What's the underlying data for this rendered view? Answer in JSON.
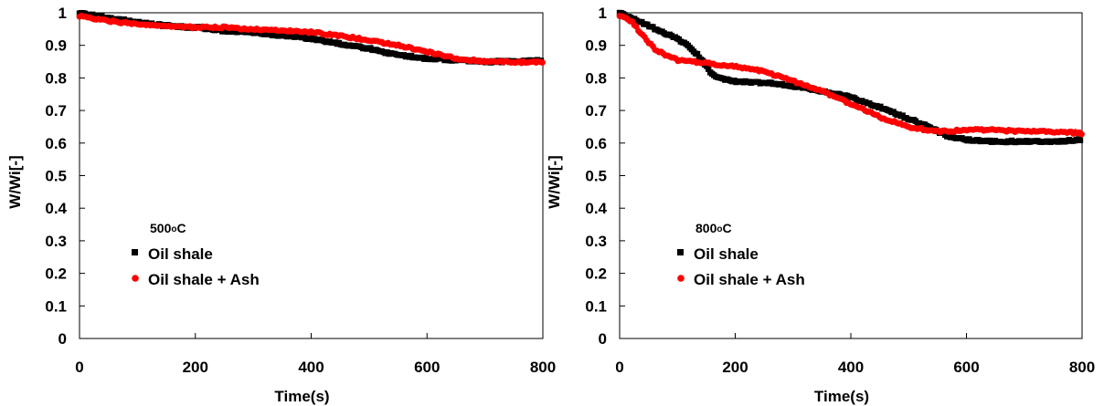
{
  "chart_data": [
    {
      "type": "scatter",
      "xlabel": "Time(s)",
      "ylabel": "W/Wi[-]",
      "xlim": [
        0,
        800
      ],
      "ylim": [
        0,
        1
      ],
      "xticks": [
        0,
        200,
        400,
        600,
        800
      ],
      "yticks": [
        0,
        0.1,
        0.2,
        0.3,
        0.4,
        0.5,
        0.6,
        0.7,
        0.8,
        0.9,
        1
      ],
      "legend": {
        "placement": "lower-left",
        "title_value": "500",
        "title_sup": "o",
        "title_unit": "C"
      },
      "series": [
        {
          "name": "Oil shale",
          "color": "#000000",
          "marker": "square",
          "x": [
            0,
            50,
            100,
            150,
            200,
            250,
            300,
            350,
            400,
            450,
            500,
            550,
            600,
            650,
            700,
            750,
            800
          ],
          "y": [
            1.0,
            0.985,
            0.97,
            0.96,
            0.955,
            0.945,
            0.94,
            0.93,
            0.92,
            0.905,
            0.89,
            0.87,
            0.86,
            0.855,
            0.85,
            0.85,
            0.855
          ]
        },
        {
          "name": "Oil shale + Ash",
          "color": "#ff0000",
          "marker": "circle",
          "x": [
            0,
            50,
            100,
            150,
            200,
            250,
            300,
            350,
            400,
            450,
            500,
            550,
            600,
            650,
            700,
            750,
            800
          ],
          "y": [
            0.99,
            0.975,
            0.965,
            0.96,
            0.955,
            0.955,
            0.95,
            0.945,
            0.94,
            0.93,
            0.915,
            0.9,
            0.88,
            0.86,
            0.85,
            0.848,
            0.848
          ]
        }
      ]
    },
    {
      "type": "scatter",
      "xlabel": "Time(s)",
      "ylabel": "W/Wi[-]",
      "xlim": [
        0,
        800
      ],
      "ylim": [
        0,
        1
      ],
      "xticks": [
        0,
        200,
        400,
        600,
        800
      ],
      "yticks": [
        0,
        0.1,
        0.2,
        0.3,
        0.4,
        0.5,
        0.6,
        0.7,
        0.8,
        0.9,
        1
      ],
      "legend": {
        "placement": "lower-left",
        "title_value": "800",
        "title_sup": "o",
        "title_unit": "C"
      },
      "series": [
        {
          "name": "Oil shale",
          "color": "#000000",
          "marker": "square",
          "x": [
            0,
            25,
            50,
            75,
            100,
            125,
            140,
            160,
            180,
            200,
            250,
            300,
            350,
            400,
            450,
            500,
            540,
            570,
            600,
            650,
            700,
            750,
            800
          ],
          "y": [
            1.0,
            0.98,
            0.96,
            0.94,
            0.92,
            0.89,
            0.86,
            0.81,
            0.795,
            0.79,
            0.785,
            0.775,
            0.76,
            0.74,
            0.71,
            0.675,
            0.645,
            0.62,
            0.61,
            0.605,
            0.605,
            0.605,
            0.61
          ]
        },
        {
          "name": "Oil shale + Ash",
          "color": "#ff0000",
          "marker": "circle",
          "x": [
            0,
            20,
            40,
            60,
            80,
            100,
            150,
            200,
            250,
            300,
            350,
            400,
            450,
            500,
            550,
            600,
            650,
            700,
            750,
            800
          ],
          "y": [
            0.99,
            0.975,
            0.93,
            0.89,
            0.87,
            0.855,
            0.845,
            0.835,
            0.82,
            0.79,
            0.76,
            0.72,
            0.68,
            0.65,
            0.635,
            0.64,
            0.64,
            0.635,
            0.635,
            0.63
          ]
        }
      ]
    }
  ]
}
